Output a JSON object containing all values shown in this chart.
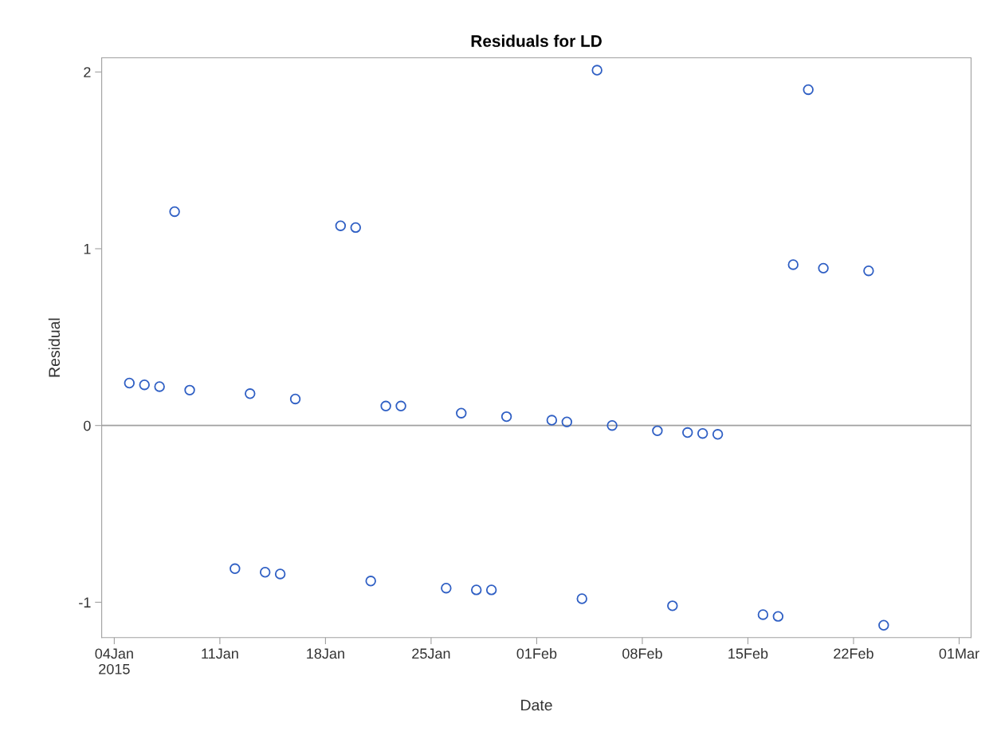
{
  "chart_data": {
    "type": "scatter",
    "title": "Residuals for LD",
    "xlabel": "Date",
    "ylabel": "Residual",
    "x": [
      "2015-01-05",
      "2015-01-06",
      "2015-01-07",
      "2015-01-08",
      "2015-01-09",
      "2015-01-12",
      "2015-01-13",
      "2015-01-14",
      "2015-01-15",
      "2015-01-16",
      "2015-01-19",
      "2015-01-20",
      "2015-01-21",
      "2015-01-22",
      "2015-01-23",
      "2015-01-26",
      "2015-01-27",
      "2015-01-28",
      "2015-01-29",
      "2015-01-30",
      "2015-02-02",
      "2015-02-03",
      "2015-02-04",
      "2015-02-05",
      "2015-02-06",
      "2015-02-09",
      "2015-02-10",
      "2015-02-11",
      "2015-02-12",
      "2015-02-13",
      "2015-02-16",
      "2015-02-17",
      "2015-02-18",
      "2015-02-19",
      "2015-02-20",
      "2015-02-23",
      "2015-02-24"
    ],
    "series": [
      {
        "color": "#2f5fc4",
        "values": [
          0.24,
          0.23,
          0.22,
          1.21,
          0.2,
          -0.81,
          0.18,
          -0.83,
          -0.84,
          0.15,
          1.13,
          1.12,
          -0.88,
          0.11,
          0.11,
          -0.92,
          0.07,
          -0.93,
          -0.93,
          0.05,
          0.03,
          0.02,
          -0.98,
          2.01,
          0.0,
          -0.03,
          -1.02,
          -0.04,
          -0.045,
          -0.05,
          -1.07,
          -1.08,
          0.91,
          1.9,
          0.89,
          0.875,
          -1.13
        ]
      }
    ],
    "marker": "circle",
    "xlim": [
      "2015-01-03T04:00",
      "2015-03-01T19:00"
    ],
    "xticks": [
      {
        "value": "2015-01-04",
        "label": "04Jan\n2015"
      },
      {
        "value": "2015-01-11",
        "label": "11Jan"
      },
      {
        "value": "2015-01-18",
        "label": "18Jan"
      },
      {
        "value": "2015-01-25",
        "label": "25Jan"
      },
      {
        "value": "2015-02-01",
        "label": "01Feb"
      },
      {
        "value": "2015-02-08",
        "label": "08Feb"
      },
      {
        "value": "2015-02-15",
        "label": "15Feb"
      },
      {
        "value": "2015-02-22",
        "label": "22Feb"
      },
      {
        "value": "2015-03-01",
        "label": "01Mar"
      }
    ],
    "ylim": [
      -1.2,
      2.08
    ],
    "yticks": [
      -1,
      0,
      1,
      2
    ],
    "ref_lines": [
      {
        "axis": "y",
        "value": 0,
        "color": "#a0a0a0"
      }
    ],
    "grid": false,
    "legend": false
  }
}
